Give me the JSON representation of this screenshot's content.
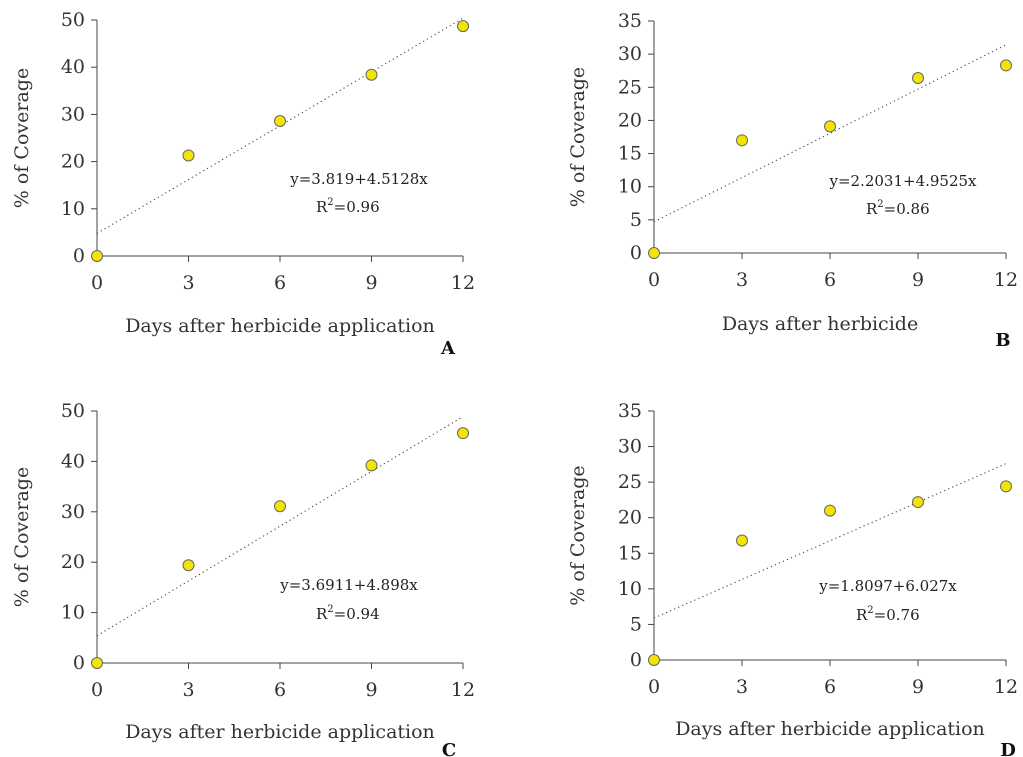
{
  "chart_data": [
    {
      "type": "scatter",
      "panel": "A",
      "x": [
        0,
        3,
        6,
        9,
        12
      ],
      "y": [
        0,
        21.3,
        28.6,
        38.4,
        48.7
      ],
      "xticks": [
        0,
        3,
        6,
        9,
        12
      ],
      "yticks": [
        0,
        10,
        20,
        30,
        40,
        50
      ],
      "xlim": [
        0,
        12
      ],
      "ylim": [
        0,
        50
      ],
      "xlabel": "Days after herbicide application",
      "ylabel": "% of Coverage",
      "equation": "y=3.819+4.5128x",
      "r2_label": "R",
      "r2_value": "=0.96",
      "trendline": {
        "x0": 0,
        "y0": 4.8,
        "x1": 12,
        "y1": 50.4,
        "style": "dotted"
      },
      "point_color": "#f2e600"
    },
    {
      "type": "scatter",
      "panel": "B",
      "x": [
        0,
        3,
        6,
        9,
        12
      ],
      "y": [
        0,
        17.0,
        19.1,
        26.4,
        28.3
      ],
      "xticks": [
        0,
        3,
        6,
        9,
        12
      ],
      "yticks": [
        0,
        5,
        10,
        15,
        20,
        25,
        30,
        35
      ],
      "xlim": [
        0,
        12
      ],
      "ylim": [
        0,
        35
      ],
      "xlabel": "Days after herbicide",
      "ylabel": "% of Coverage",
      "equation": "y=2.2031+4.9525x",
      "r2_label": "R",
      "r2_value": "=0.86",
      "trendline": {
        "x0": 0,
        "y0": 4.7,
        "x1": 12,
        "y1": 31.4,
        "style": "dotted"
      },
      "point_color": "#f2e600"
    },
    {
      "type": "scatter",
      "panel": "C",
      "x": [
        0,
        3,
        6,
        9,
        12
      ],
      "y": [
        0,
        19.4,
        31.1,
        39.2,
        45.6
      ],
      "xticks": [
        0,
        3,
        6,
        9,
        12
      ],
      "yticks": [
        0,
        10,
        20,
        30,
        40,
        50
      ],
      "xlim": [
        0,
        12
      ],
      "ylim": [
        0,
        50
      ],
      "xlabel": "Days after herbicide application",
      "ylabel": "% of Coverage",
      "equation": "y=3.6911+4.898x",
      "r2_label": "R",
      "r2_value": "=0.94",
      "trendline": {
        "x0": 0,
        "y0": 5.4,
        "x1": 12,
        "y1": 48.9,
        "style": "dotted"
      },
      "point_color": "#f2e600"
    },
    {
      "type": "scatter",
      "panel": "D",
      "x": [
        0,
        3,
        6,
        9,
        12
      ],
      "y": [
        0,
        16.8,
        21.0,
        22.2,
        24.4
      ],
      "xticks": [
        0,
        3,
        6,
        9,
        12
      ],
      "yticks": [
        0,
        5,
        10,
        15,
        20,
        25,
        30,
        35
      ],
      "xlim": [
        0,
        12
      ],
      "ylim": [
        0,
        35
      ],
      "xlabel": "Days after herbicide application",
      "ylabel": "% of Coverage",
      "equation": "y=1.8097+6.027x",
      "r2_label": "R",
      "r2_value": "=0.76",
      "trendline": {
        "x0": 0,
        "y0": 5.9,
        "x1": 12,
        "y1": 27.6,
        "style": "dotted"
      },
      "point_color": "#f2e600"
    }
  ]
}
